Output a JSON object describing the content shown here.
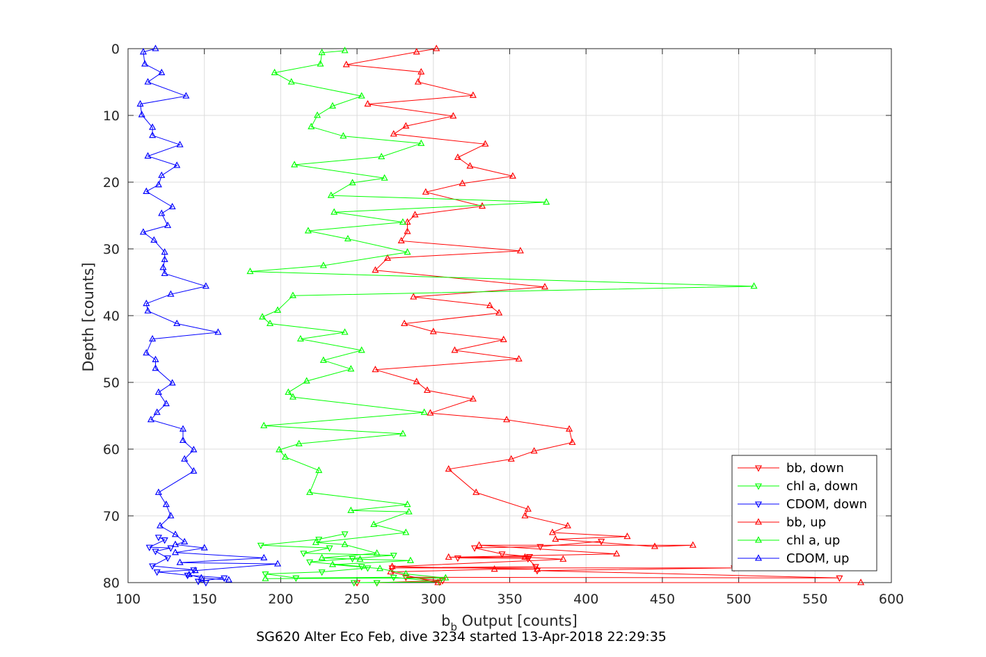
{
  "chart_data": {
    "type": "line",
    "xlabel_main": "b",
    "xlabel_sub": "b",
    "xlabel_rest": " Output [counts]",
    "ylabel": "Depth [counts]",
    "caption": "SG620 Alter Eco Feb, dive 3234 started 13-Apr-2018 22:29:35",
    "xlim": [
      100,
      600
    ],
    "ylim": [
      0,
      80
    ],
    "y_reversed": true,
    "grid": true,
    "legend_position": "bottom-right",
    "x_ticks": [
      "100",
      "150",
      "200",
      "250",
      "300",
      "350",
      "400",
      "450",
      "500",
      "550",
      "600"
    ],
    "y_ticks": [
      "0",
      "10",
      "20",
      "30",
      "40",
      "50",
      "60",
      "70",
      "80"
    ],
    "series": [
      {
        "name": "bb, down",
        "color": "#ff0000",
        "marker": "triangle-down",
        "points": [
          [
            250,
            80
          ],
          [
            263,
            80
          ],
          [
            306,
            79.7
          ],
          [
            282,
            79.2
          ],
          [
            566,
            79.3
          ],
          [
            368,
            78.2
          ],
          [
            497,
            77.8
          ],
          [
            273,
            77.8
          ],
          [
            367,
            77.6
          ],
          [
            362,
            76.4
          ],
          [
            316,
            76.3
          ],
          [
            363,
            76.1
          ],
          [
            345,
            75.7
          ],
          [
            327,
            74.8
          ],
          [
            370,
            74.6
          ],
          [
            410,
            73.8
          ]
        ]
      },
      {
        "name": "chl a, down",
        "color": "#00ff00",
        "marker": "triangle-down",
        "points": [
          [
            263,
            80
          ],
          [
            248,
            80
          ],
          [
            304,
            79.9
          ],
          [
            274,
            79.2
          ],
          [
            210,
            79.3
          ],
          [
            190,
            78.7
          ],
          [
            227,
            78.4
          ],
          [
            257,
            77.8
          ],
          [
            253,
            77.6
          ],
          [
            219,
            76.9
          ],
          [
            247,
            76.4
          ],
          [
            274,
            75.9
          ],
          [
            215,
            75.6
          ],
          [
            232,
            74.8
          ],
          [
            187,
            74.4
          ],
          [
            225,
            73.5
          ],
          [
            242,
            72.7
          ]
        ]
      },
      {
        "name": "CDOM, down",
        "color": "#0000ff",
        "marker": "triangle-down",
        "points": [
          [
            151,
            80
          ],
          [
            146,
            79.8
          ],
          [
            163,
            79.3
          ],
          [
            139,
            78.9
          ],
          [
            119,
            78.4
          ],
          [
            143,
            78.1
          ],
          [
            116,
            77.5
          ],
          [
            126,
            76.3
          ],
          [
            118,
            75.3
          ],
          [
            128,
            74.8
          ],
          [
            114,
            74.7
          ],
          [
            124,
            73.6
          ],
          [
            120,
            73.2
          ]
        ]
      },
      {
        "name": "bb, up",
        "color": "#ff0000",
        "marker": "triangle-up",
        "points": [
          [
            580,
            80
          ],
          [
            303,
            80
          ],
          [
            272,
            78.4
          ],
          [
            340,
            78
          ],
          [
            368,
            78
          ],
          [
            273,
            77.6
          ],
          [
            385,
            76.5
          ],
          [
            360,
            76.2
          ],
          [
            310,
            76.2
          ],
          [
            420,
            75.7
          ],
          [
            330,
            74.4
          ],
          [
            470,
            74.4
          ],
          [
            445,
            74.6
          ],
          [
            380,
            73.5
          ],
          [
            427,
            73.1
          ],
          [
            378,
            72.5
          ],
          [
            388,
            71.5
          ],
          [
            360,
            70
          ],
          [
            362,
            69
          ],
          [
            328,
            66.5
          ],
          [
            310,
            63
          ],
          [
            351,
            61.5
          ],
          [
            366,
            60.3
          ],
          [
            391,
            59
          ],
          [
            389,
            57
          ],
          [
            348,
            55.6
          ],
          [
            298,
            54.6
          ],
          [
            326,
            52.5
          ],
          [
            296,
            51.2
          ],
          [
            289,
            49.9
          ],
          [
            262,
            48.1
          ],
          [
            356,
            46.5
          ],
          [
            314,
            45.2
          ],
          [
            346,
            43.6
          ],
          [
            300,
            42.4
          ],
          [
            281,
            41.2
          ],
          [
            343,
            39.6
          ],
          [
            337,
            38.5
          ],
          [
            287,
            37.2
          ],
          [
            373,
            35.7
          ],
          [
            262,
            33.2
          ],
          [
            270,
            31.4
          ],
          [
            357,
            30.3
          ],
          [
            279,
            28.8
          ],
          [
            283,
            27.4
          ],
          [
            283,
            26
          ],
          [
            288,
            24.9
          ],
          [
            332,
            23.6
          ],
          [
            295,
            21.5
          ],
          [
            319,
            20.2
          ],
          [
            352,
            19.1
          ],
          [
            324,
            17.6
          ],
          [
            316,
            16.3
          ],
          [
            334,
            14.3
          ],
          [
            274,
            12.8
          ],
          [
            282,
            11.6
          ],
          [
            313,
            10.1
          ],
          [
            257,
            8.3
          ],
          [
            326,
            7
          ],
          [
            290,
            5
          ],
          [
            292,
            3.5
          ],
          [
            243,
            2.4
          ],
          [
            289,
            0.5
          ],
          [
            302,
            0
          ]
        ]
      },
      {
        "name": "chl a, up",
        "color": "#00ff00",
        "marker": "triangle-up",
        "points": [
          [
            190,
            79.4
          ],
          [
            308,
            79.3
          ],
          [
            282,
            78.7
          ],
          [
            265,
            77.9
          ],
          [
            234,
            77.3
          ],
          [
            285,
            76.7
          ],
          [
            252,
            76.5
          ],
          [
            227,
            76.3
          ],
          [
            263,
            75.6
          ],
          [
            242,
            74.3
          ],
          [
            223,
            74
          ],
          [
            282,
            72.5
          ],
          [
            261,
            71.3
          ],
          [
            284,
            69.4
          ],
          [
            246,
            69.2
          ],
          [
            283,
            68.3
          ],
          [
            219,
            66.5
          ],
          [
            225,
            63.2
          ],
          [
            203,
            61.2
          ],
          [
            199,
            60.1
          ],
          [
            212,
            59.2
          ],
          [
            280,
            57.7
          ],
          [
            189,
            56.5
          ],
          [
            294,
            54.5
          ],
          [
            208,
            52.2
          ],
          [
            205,
            51.5
          ],
          [
            217,
            49.8
          ],
          [
            246,
            48
          ],
          [
            228,
            46.7
          ],
          [
            253,
            45.2
          ],
          [
            213,
            43.5
          ],
          [
            242,
            42.5
          ],
          [
            193,
            41.2
          ],
          [
            188,
            40.2
          ],
          [
            198,
            39.2
          ],
          [
            208,
            37
          ],
          [
            510,
            35.6
          ],
          [
            180,
            33.4
          ],
          [
            228,
            32.5
          ],
          [
            283,
            30.5
          ],
          [
            244,
            28.5
          ],
          [
            218,
            27.3
          ],
          [
            280,
            26
          ],
          [
            235,
            24.5
          ],
          [
            374,
            23
          ],
          [
            233,
            22
          ],
          [
            247,
            20.1
          ],
          [
            268,
            19.4
          ],
          [
            209,
            17.4
          ],
          [
            266,
            16.2
          ],
          [
            292,
            14.2
          ],
          [
            241,
            13.1
          ],
          [
            220,
            11.7
          ],
          [
            224,
            10
          ],
          [
            234,
            8.6
          ],
          [
            253,
            7.1
          ],
          [
            207,
            5
          ],
          [
            196,
            3.6
          ],
          [
            226,
            2.3
          ],
          [
            227,
            0.6
          ],
          [
            242,
            0.3
          ]
        ]
      },
      {
        "name": "CDOM, up",
        "color": "#0000ff",
        "marker": "triangle-up",
        "points": [
          [
            166,
            79.6
          ],
          [
            148,
            79.3
          ],
          [
            140,
            78.8
          ],
          [
            144,
            78.2
          ],
          [
            198,
            77.2
          ],
          [
            134,
            77
          ],
          [
            189,
            76.3
          ],
          [
            131,
            75.5
          ],
          [
            150,
            74.8
          ],
          [
            131,
            74.3
          ],
          [
            137,
            73.9
          ],
          [
            131,
            72.8
          ],
          [
            121,
            71.5
          ],
          [
            128,
            70
          ],
          [
            125,
            68.3
          ],
          [
            120,
            66.5
          ],
          [
            143,
            63.3
          ],
          [
            137,
            61.5
          ],
          [
            143,
            60.1
          ],
          [
            136,
            58.7
          ],
          [
            136,
            57
          ],
          [
            115,
            55.6
          ],
          [
            119,
            54.5
          ],
          [
            125,
            53.2
          ],
          [
            120,
            51.5
          ],
          [
            129,
            50.1
          ],
          [
            118,
            47.9
          ],
          [
            118,
            46.6
          ],
          [
            112,
            45.6
          ],
          [
            116,
            43.5
          ],
          [
            159,
            42.5
          ],
          [
            132,
            41.2
          ],
          [
            113,
            39.3
          ],
          [
            112,
            38.2
          ],
          [
            128,
            36.8
          ],
          [
            151,
            35.6
          ],
          [
            124,
            33.7
          ],
          [
            123,
            32.8
          ],
          [
            124,
            31.6
          ],
          [
            124,
            30.5
          ],
          [
            117,
            28.7
          ],
          [
            110,
            27.5
          ],
          [
            126,
            26.5
          ],
          [
            122,
            24.7
          ],
          [
            129,
            23.7
          ],
          [
            112,
            21.4
          ],
          [
            120,
            20.4
          ],
          [
            122,
            19
          ],
          [
            132,
            17.5
          ],
          [
            113,
            16.1
          ],
          [
            134,
            14.4
          ],
          [
            116,
            13
          ],
          [
            116,
            11.8
          ],
          [
            109,
            9.9
          ],
          [
            108,
            8.3
          ],
          [
            138,
            7.1
          ],
          [
            113,
            5
          ],
          [
            122,
            3.6
          ],
          [
            111,
            2.3
          ],
          [
            110,
            0.5
          ],
          [
            118,
            0
          ]
        ]
      }
    ]
  }
}
